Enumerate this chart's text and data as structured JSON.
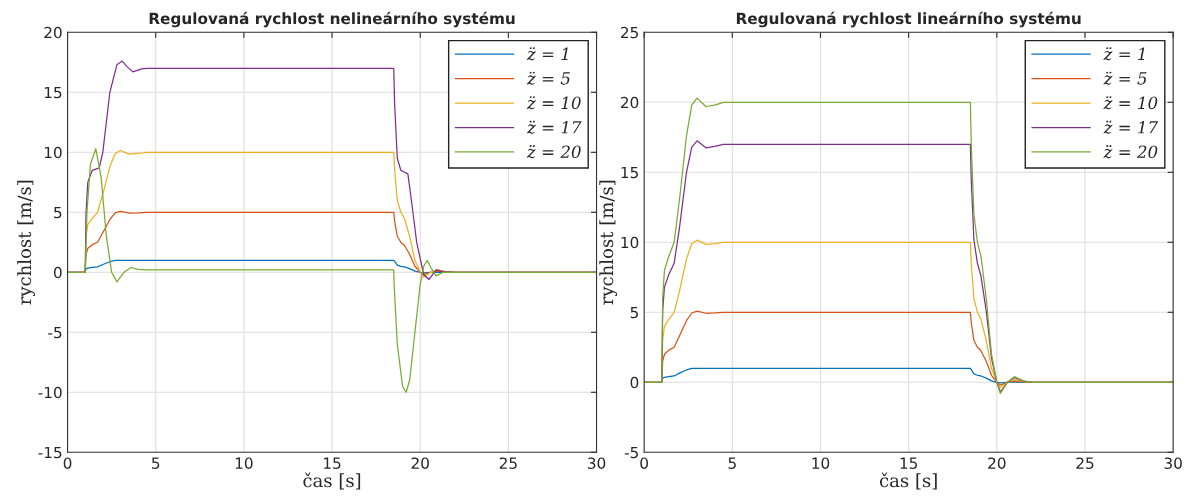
{
  "chart_data": [
    {
      "type": "line",
      "title": "Regulovaná rychlost nelineárního systému",
      "xlabel": "čas [s]",
      "ylabel": "rychlost [m/s]",
      "x": [
        0,
        1,
        1.05,
        1.15,
        1.4,
        1.7,
        2.0,
        2.4,
        2.7,
        3.0,
        3.5,
        4.0,
        4.5,
        18.5,
        18.55,
        18.7,
        18.9,
        19.1,
        19.4,
        19.7,
        20.0,
        20.2,
        20.6,
        21.0,
        21.5,
        22,
        30
      ],
      "xlim": [
        0,
        30
      ],
      "xticks": [
        0,
        5,
        10,
        15,
        20,
        25,
        30
      ],
      "ylim": [
        -15,
        20
      ],
      "yticks": [
        -15,
        -10,
        -5,
        0,
        5,
        10,
        15,
        20
      ],
      "grid": true,
      "legend": "top right",
      "series": [
        {
          "name": "z̈ = 1",
          "color": "#0072bd",
          "values": [
            0,
            0,
            0.3,
            0.35,
            0.4,
            0.45,
            0.65,
            0.88,
            0.99,
            1.0,
            1.0,
            1.0,
            1.0,
            1.0,
            0.9,
            0.6,
            0.5,
            0.45,
            0.3,
            0.1,
            0,
            -0.04,
            0,
            0.02,
            0,
            0,
            0
          ]
        },
        {
          "name": "z̈ = 5",
          "color": "#d95319",
          "values": [
            0,
            0,
            1.5,
            2.0,
            2.3,
            2.5,
            3.3,
            4.4,
            4.95,
            5.08,
            4.93,
            4.95,
            5,
            5,
            4.25,
            3.0,
            2.5,
            2.25,
            1.5,
            0.5,
            0,
            -0.2,
            0,
            0.1,
            0.03,
            0,
            0
          ]
        },
        {
          "name": "z̈ = 10",
          "color": "#edb120",
          "values": [
            0,
            0,
            3,
            4,
            4.5,
            5,
            6.5,
            8.8,
            9.9,
            10.15,
            9.85,
            9.9,
            10,
            10,
            8.5,
            6,
            5,
            4.5,
            3,
            1,
            0,
            -0.4,
            0,
            0.2,
            0.05,
            0,
            0
          ]
        },
        {
          "name": "z̈ = 17",
          "color": "#7e2f8e",
          "x": [
            0,
            1,
            1.05,
            1.15,
            1.4,
            1.8,
            2.0,
            2.4,
            2.8,
            3.1,
            3.4,
            3.7,
            4.2,
            4.5,
            18.5,
            18.55,
            18.7,
            18.9,
            19.3,
            19.5,
            19.8,
            20.2,
            20.5,
            20.9,
            21.3,
            22,
            30
          ],
          "values": [
            0,
            0,
            5,
            7.5,
            8.5,
            8.7,
            10,
            15,
            17.3,
            17.6,
            17.1,
            16.7,
            16.95,
            17,
            17,
            14,
            9.5,
            8.5,
            8.2,
            6,
            2.5,
            -0.2,
            -0.6,
            0.2,
            0.05,
            0,
            0
          ]
        },
        {
          "name": "z̈ = 20",
          "color": "#77ac30",
          "x": [
            0,
            1,
            1.1,
            1.3,
            1.6,
            1.9,
            2.2,
            2.5,
            2.8,
            3.2,
            3.6,
            4.0,
            4.5,
            18.5,
            18.52,
            18.7,
            19.0,
            19.2,
            19.4,
            19.7,
            20.0,
            20.2,
            20.4,
            20.6,
            20.9,
            21.3,
            22,
            30
          ],
          "values": [
            0,
            0,
            5,
            9,
            10.3,
            8,
            3,
            0,
            -0.8,
            0,
            0.4,
            0.25,
            0.2,
            0.2,
            -1,
            -6,
            -9.5,
            -10,
            -9,
            -5,
            -1,
            0.5,
            1,
            0.4,
            -0.3,
            0,
            0,
            0
          ]
        }
      ]
    },
    {
      "type": "line",
      "title": "Regulovaná rychlost lineárního systému",
      "xlabel": "čas [s]",
      "ylabel": "rychlost [m/s]",
      "x": [
        0,
        1,
        1.05,
        1.15,
        1.4,
        1.7,
        2.0,
        2.4,
        2.7,
        3.0,
        3.5,
        4.0,
        4.5,
        18.5,
        18.55,
        18.7,
        18.9,
        19.1,
        19.4,
        19.7,
        20.0,
        20.2,
        20.6,
        21.0,
        21.5,
        22,
        30
      ],
      "xlim": [
        0,
        30
      ],
      "xticks": [
        0,
        5,
        10,
        15,
        20,
        25,
        30
      ],
      "ylim": [
        -5,
        25
      ],
      "yticks": [
        -5,
        0,
        5,
        10,
        15,
        20,
        25
      ],
      "grid": true,
      "legend": "top right",
      "series": [
        {
          "name": "z̈ = 1",
          "color": "#0072bd",
          "values": [
            0,
            0,
            0.3,
            0.35,
            0.4,
            0.45,
            0.65,
            0.88,
            0.99,
            1.0,
            1.0,
            1.0,
            1.0,
            1.0,
            0.9,
            0.6,
            0.5,
            0.45,
            0.3,
            0.1,
            0,
            -0.04,
            0,
            0.02,
            0,
            0,
            0
          ]
        },
        {
          "name": "z̈ = 5",
          "color": "#d95319",
          "values": [
            0,
            0,
            1.5,
            2.0,
            2.3,
            2.5,
            3.3,
            4.4,
            4.95,
            5.08,
            4.93,
            4.95,
            5,
            5,
            4.25,
            3.0,
            2.5,
            2.25,
            1.5,
            0.5,
            0,
            -0.2,
            0,
            0.1,
            0.03,
            0,
            0
          ]
        },
        {
          "name": "z̈ = 10",
          "color": "#edb120",
          "values": [
            0,
            0,
            3,
            4,
            4.5,
            5,
            6.5,
            8.8,
            9.9,
            10.15,
            9.85,
            9.9,
            10,
            10,
            8.5,
            6,
            5,
            4.5,
            3,
            1,
            0,
            -0.4,
            0,
            0.2,
            0.05,
            0,
            0
          ]
        },
        {
          "name": "z̈ = 17",
          "color": "#7e2f8e",
          "values": [
            0,
            0,
            5.1,
            6.8,
            7.7,
            8.5,
            11,
            15,
            16.8,
            17.25,
            16.75,
            16.85,
            17,
            17,
            14.5,
            10.2,
            8.5,
            7.6,
            5.1,
            1.7,
            0,
            -0.7,
            0,
            0.34,
            0.08,
            0,
            0
          ]
        },
        {
          "name": "z̈ = 20",
          "color": "#77ac30",
          "values": [
            0,
            0,
            6,
            8,
            9,
            10,
            13,
            17.6,
            19.8,
            20.3,
            19.7,
            19.8,
            20,
            20,
            17,
            12,
            10,
            9,
            6,
            2,
            0,
            -0.8,
            0,
            0.4,
            0.1,
            0,
            0
          ]
        }
      ]
    }
  ]
}
